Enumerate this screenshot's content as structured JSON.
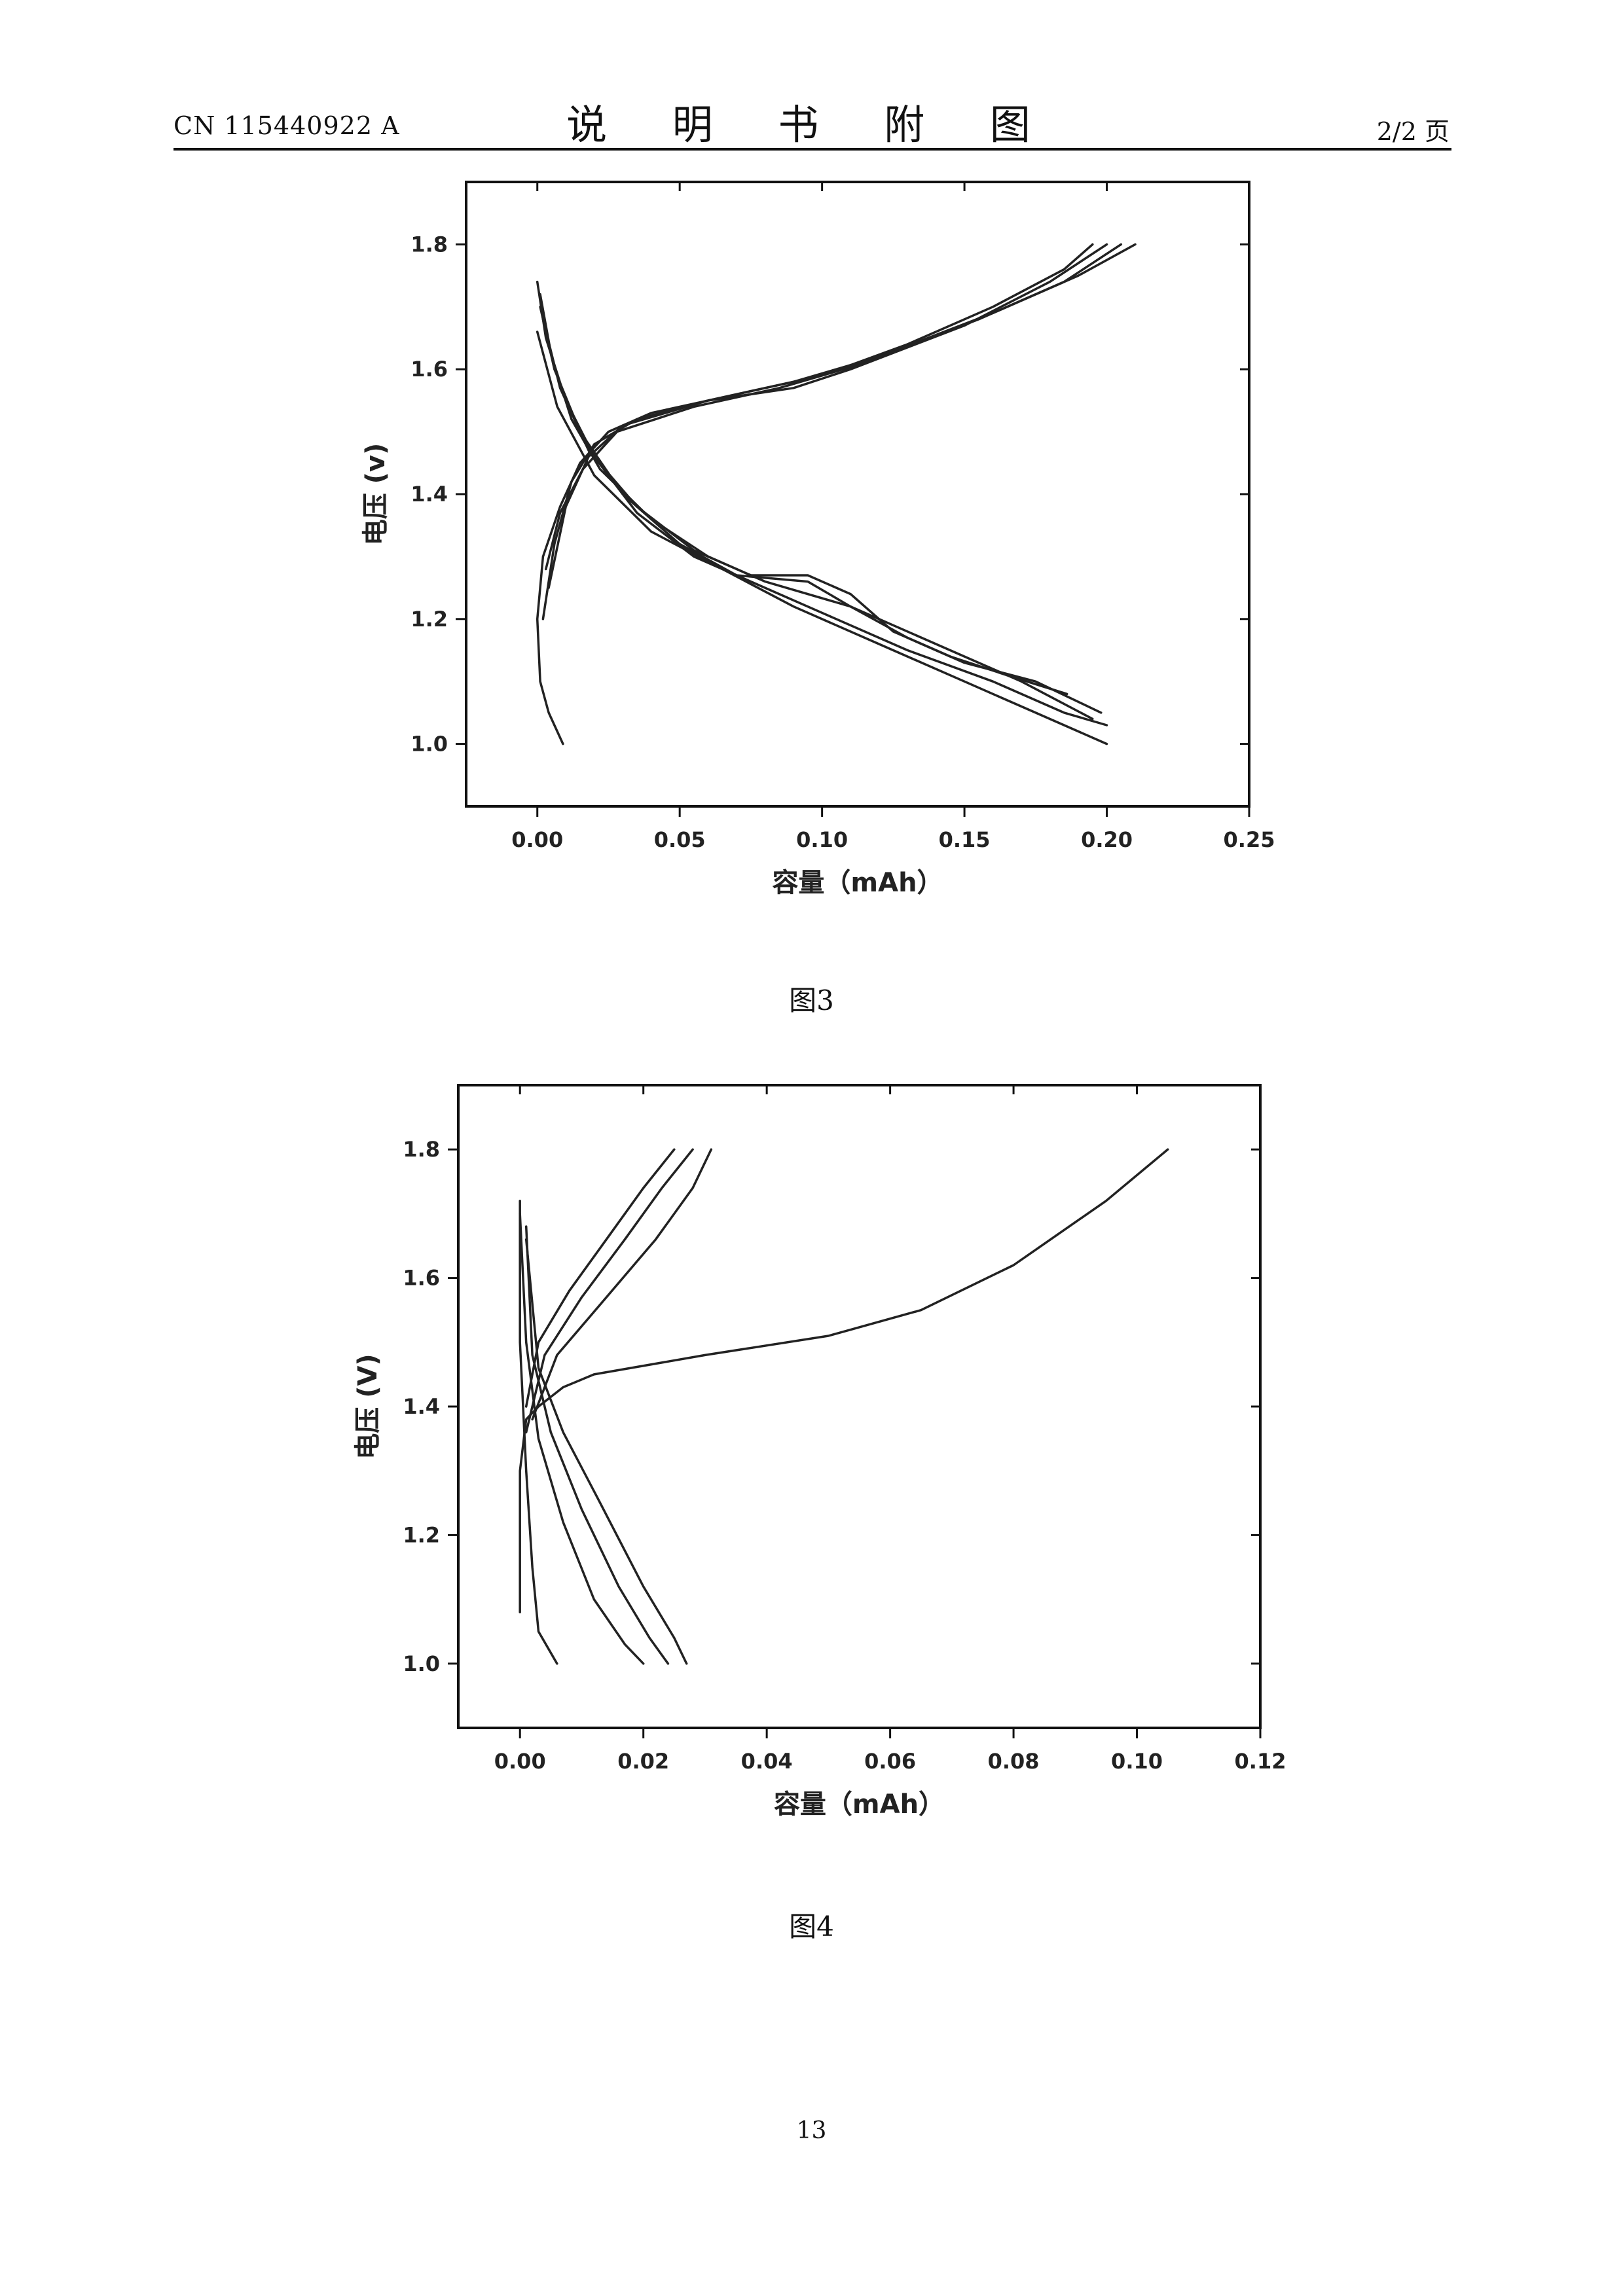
{
  "header": {
    "doc_number": "CN 115440922 A",
    "title": "说 明 书 附 图",
    "page_of": "2/2 页"
  },
  "figures": [
    {
      "caption": "图3"
    },
    {
      "caption": "图4"
    }
  ],
  "page_number": "13",
  "colors": {
    "curve": "#222222",
    "axis": "#111111"
  },
  "chart_data": [
    {
      "type": "line",
      "xlabel": "容量（mAh）",
      "ylabel": "电压 (v)",
      "xlim": [
        -0.025,
        0.25
      ],
      "ylim": [
        0.9,
        1.9
      ],
      "xticks": [
        "0.00",
        "0.05",
        "0.10",
        "0.15",
        "0.20",
        "0.25"
      ],
      "yticks": [
        "1.0",
        "1.2",
        "1.4",
        "1.6",
        "1.8"
      ],
      "xtick_values": [
        0,
        0.05,
        0.1,
        0.15,
        0.2,
        0.25
      ],
      "ytick_values": [
        1.0,
        1.2,
        1.4,
        1.6,
        1.8
      ],
      "series": [
        {
          "points": [
            [
              0.009,
              1.0
            ],
            [
              0.004,
              1.05
            ],
            [
              0.001,
              1.1
            ],
            [
              0.0,
              1.2
            ],
            [
              0.002,
              1.3
            ],
            [
              0.008,
              1.38
            ],
            [
              0.015,
              1.45
            ],
            [
              0.025,
              1.5
            ],
            [
              0.04,
              1.53
            ],
            [
              0.06,
              1.55
            ],
            [
              0.08,
              1.57
            ],
            [
              0.1,
              1.59
            ],
            [
              0.13,
              1.64
            ],
            [
              0.16,
              1.7
            ],
            [
              0.185,
              1.76
            ],
            [
              0.195,
              1.8
            ]
          ]
        },
        {
          "points": [
            [
              0.002,
              1.2
            ],
            [
              0.006,
              1.32
            ],
            [
              0.012,
              1.42
            ],
            [
              0.02,
              1.48
            ],
            [
              0.035,
              1.52
            ],
            [
              0.06,
              1.55
            ],
            [
              0.09,
              1.57
            ],
            [
              0.11,
              1.6
            ],
            [
              0.15,
              1.67
            ],
            [
              0.18,
              1.74
            ],
            [
              0.2,
              1.8
            ]
          ]
        },
        {
          "points": [
            [
              0.004,
              1.25
            ],
            [
              0.01,
              1.38
            ],
            [
              0.018,
              1.46
            ],
            [
              0.03,
              1.51
            ],
            [
              0.06,
              1.55
            ],
            [
              0.09,
              1.58
            ],
            [
              0.12,
              1.62
            ],
            [
              0.16,
              1.69
            ],
            [
              0.19,
              1.75
            ],
            [
              0.21,
              1.8
            ]
          ]
        },
        {
          "points": [
            [
              0.003,
              1.28
            ],
            [
              0.008,
              1.37
            ],
            [
              0.016,
              1.44
            ],
            [
              0.028,
              1.5
            ],
            [
              0.055,
              1.54
            ],
            [
              0.085,
              1.57
            ],
            [
              0.115,
              1.61
            ],
            [
              0.155,
              1.68
            ],
            [
              0.185,
              1.74
            ],
            [
              0.205,
              1.8
            ]
          ]
        },
        {
          "points": [
            [
              0.0,
              1.74
            ],
            [
              0.003,
              1.65
            ],
            [
              0.01,
              1.55
            ],
            [
              0.02,
              1.46
            ],
            [
              0.035,
              1.37
            ],
            [
              0.055,
              1.3
            ],
            [
              0.075,
              1.26
            ],
            [
              0.1,
              1.21
            ],
            [
              0.13,
              1.15
            ],
            [
              0.16,
              1.1
            ],
            [
              0.185,
              1.05
            ],
            [
              0.2,
              1.03
            ]
          ]
        },
        {
          "points": [
            [
              0.001,
              1.72
            ],
            [
              0.005,
              1.62
            ],
            [
              0.012,
              1.52
            ],
            [
              0.022,
              1.44
            ],
            [
              0.04,
              1.36
            ],
            [
              0.06,
              1.3
            ],
            [
              0.08,
              1.26
            ],
            [
              0.11,
              1.22
            ],
            [
              0.14,
              1.16
            ],
            [
              0.17,
              1.1
            ],
            [
              0.195,
              1.04
            ]
          ]
        },
        {
          "points": [
            [
              0.001,
              1.7
            ],
            [
              0.006,
              1.6
            ],
            [
              0.015,
              1.5
            ],
            [
              0.03,
              1.4
            ],
            [
              0.05,
              1.32
            ],
            [
              0.07,
              1.27
            ],
            [
              0.095,
              1.26
            ],
            [
              0.11,
              1.22
            ],
            [
              0.13,
              1.17
            ],
            [
              0.15,
              1.13
            ],
            [
              0.175,
              1.1
            ],
            [
              0.198,
              1.05
            ]
          ]
        },
        {
          "points": [
            [
              0.002,
              1.68
            ],
            [
              0.008,
              1.57
            ],
            [
              0.018,
              1.47
            ],
            [
              0.035,
              1.38
            ],
            [
              0.055,
              1.31
            ],
            [
              0.075,
              1.27
            ],
            [
              0.095,
              1.27
            ],
            [
              0.11,
              1.24
            ],
            [
              0.125,
              1.18
            ],
            [
              0.145,
              1.14
            ],
            [
              0.165,
              1.11
            ],
            [
              0.186,
              1.08
            ]
          ]
        },
        {
          "points": [
            [
              0.0,
              1.66
            ],
            [
              0.007,
              1.54
            ],
            [
              0.02,
              1.43
            ],
            [
              0.04,
              1.34
            ],
            [
              0.065,
              1.28
            ],
            [
              0.09,
              1.22
            ],
            [
              0.12,
              1.16
            ],
            [
              0.15,
              1.1
            ],
            [
              0.175,
              1.05
            ],
            [
              0.2,
              1.0
            ]
          ]
        }
      ]
    },
    {
      "type": "line",
      "xlabel": "容量（mAh）",
      "ylabel": "电压 (V)",
      "xlim": [
        -0.01,
        0.12
      ],
      "ylim": [
        0.9,
        1.9
      ],
      "xticks": [
        "0.00",
        "0.02",
        "0.04",
        "0.06",
        "0.08",
        "0.10",
        "0.12"
      ],
      "yticks": [
        "1.0",
        "1.2",
        "1.4",
        "1.6",
        "1.8"
      ],
      "xtick_values": [
        0,
        0.02,
        0.04,
        0.06,
        0.08,
        0.1,
        0.12
      ],
      "ytick_values": [
        1.0,
        1.2,
        1.4,
        1.6,
        1.8
      ],
      "series": [
        {
          "points": [
            [
              0.0,
              1.08
            ],
            [
              0.0,
              1.3
            ],
            [
              0.001,
              1.38
            ],
            [
              0.003,
              1.4
            ],
            [
              0.007,
              1.43
            ],
            [
              0.012,
              1.45
            ],
            [
              0.03,
              1.48
            ],
            [
              0.05,
              1.51
            ],
            [
              0.065,
              1.55
            ],
            [
              0.08,
              1.62
            ],
            [
              0.095,
              1.72
            ],
            [
              0.105,
              1.8
            ]
          ]
        },
        {
          "points": [
            [
              0.001,
              1.4
            ],
            [
              0.003,
              1.5
            ],
            [
              0.008,
              1.58
            ],
            [
              0.014,
              1.66
            ],
            [
              0.02,
              1.74
            ],
            [
              0.025,
              1.8
            ]
          ]
        },
        {
          "points": [
            [
              0.001,
              1.36
            ],
            [
              0.004,
              1.48
            ],
            [
              0.01,
              1.57
            ],
            [
              0.017,
              1.66
            ],
            [
              0.023,
              1.74
            ],
            [
              0.028,
              1.8
            ]
          ]
        },
        {
          "points": [
            [
              0.002,
              1.38
            ],
            [
              0.006,
              1.48
            ],
            [
              0.014,
              1.57
            ],
            [
              0.022,
              1.66
            ],
            [
              0.028,
              1.74
            ],
            [
              0.031,
              1.8
            ]
          ]
        },
        {
          "points": [
            [
              0.0,
              1.72
            ],
            [
              0.0,
              1.5
            ],
            [
              0.001,
              1.3
            ],
            [
              0.002,
              1.15
            ],
            [
              0.003,
              1.05
            ],
            [
              0.006,
              1.0
            ]
          ]
        },
        {
          "points": [
            [
              0.0,
              1.7
            ],
            [
              0.001,
              1.5
            ],
            [
              0.003,
              1.35
            ],
            [
              0.007,
              1.22
            ],
            [
              0.012,
              1.1
            ],
            [
              0.017,
              1.03
            ],
            [
              0.02,
              1.0
            ]
          ]
        },
        {
          "points": [
            [
              0.001,
              1.68
            ],
            [
              0.002,
              1.48
            ],
            [
              0.005,
              1.36
            ],
            [
              0.01,
              1.24
            ],
            [
              0.016,
              1.12
            ],
            [
              0.021,
              1.04
            ],
            [
              0.024,
              1.0
            ]
          ]
        },
        {
          "points": [
            [
              0.001,
              1.66
            ],
            [
              0.003,
              1.46
            ],
            [
              0.007,
              1.36
            ],
            [
              0.013,
              1.25
            ],
            [
              0.02,
              1.12
            ],
            [
              0.025,
              1.04
            ],
            [
              0.027,
              1.0
            ]
          ]
        }
      ]
    }
  ]
}
